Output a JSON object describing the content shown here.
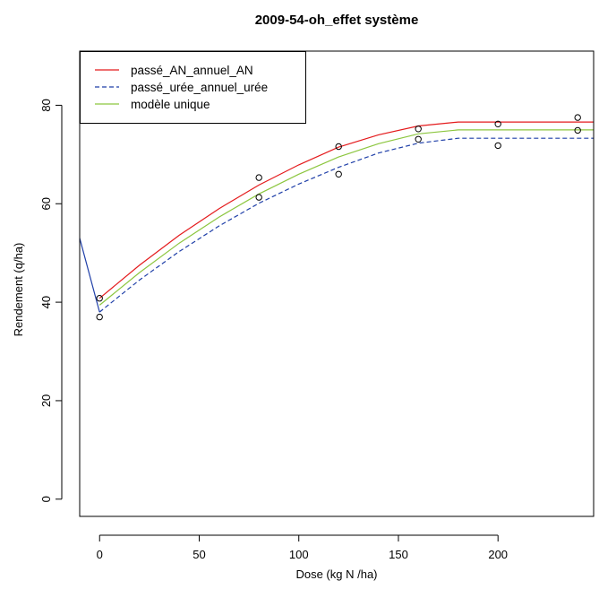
{
  "chart_data": {
    "type": "line",
    "title": "2009-54-oh_effet système",
    "xlabel": "Dose (kg N /ha)",
    "ylabel": "Rendement (q/ha)",
    "xlim": [
      -10,
      248
    ],
    "ylim": [
      -3.5,
      91
    ],
    "x_ticks": [
      0,
      50,
      100,
      150,
      200
    ],
    "y_ticks": [
      0,
      20,
      40,
      60,
      80
    ],
    "grid": false,
    "legend_position": "top-left",
    "series": [
      {
        "name": "passé_AN_annuel_AN",
        "style": "solid",
        "color": "#e41a1c",
        "x": [
          0,
          20,
          40,
          60,
          80,
          100,
          120,
          140,
          160,
          180,
          200,
          220,
          248
        ],
        "y": [
          40.8,
          47.5,
          53.6,
          59.0,
          63.8,
          67.9,
          71.5,
          74.0,
          75.8,
          76.6,
          76.6,
          76.6,
          76.6
        ]
      },
      {
        "name": "passé_urée_annuel_urée",
        "style": "dashed",
        "color": "#1f3fa8",
        "x": [
          0,
          20,
          40,
          60,
          80,
          100,
          120,
          140,
          160,
          180,
          200,
          220,
          248
        ],
        "y": [
          38.0,
          44.5,
          50.3,
          55.5,
          60.1,
          64.0,
          67.4,
          70.3,
          72.3,
          73.3,
          73.3,
          73.3,
          73.3
        ]
      },
      {
        "name": "modèle unique",
        "style": "solid",
        "color": "#8cc63f",
        "x": [
          0,
          20,
          40,
          60,
          80,
          100,
          120,
          140,
          160,
          180,
          200,
          220,
          248
        ],
        "y": [
          39.4,
          46.0,
          52.0,
          57.3,
          62.0,
          66.0,
          69.5,
          72.2,
          74.2,
          75.0,
          75.0,
          75.0,
          75.0
        ]
      }
    ],
    "points": {
      "x": [
        0,
        0,
        80,
        80,
        120,
        120,
        160,
        160,
        200,
        200,
        240,
        240
      ],
      "y": [
        40.8,
        37.0,
        65.3,
        61.3,
        71.6,
        66.0,
        75.2,
        73.1,
        76.2,
        71.8,
        77.5,
        74.9
      ]
    },
    "extra_line": {
      "color": "#1f3fa8",
      "segments": [
        {
          "x": [
            -10,
            0
          ],
          "y": [
            53.0,
            38.0
          ]
        },
        {
          "x": [
            -10,
            15
          ],
          "y": [
            87.0,
            78.0
          ]
        }
      ]
    }
  }
}
